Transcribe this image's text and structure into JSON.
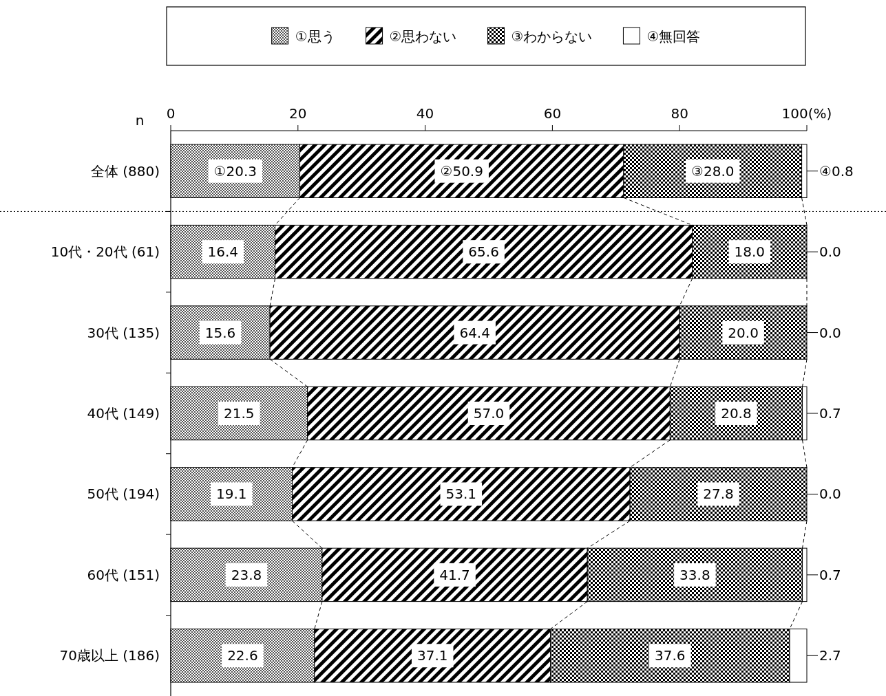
{
  "chart_data": {
    "type": "bar",
    "orientation": "horizontal",
    "stacked": true,
    "legend": "top",
    "grid": false,
    "categories": [
      "全体 (880)",
      "10代・20代 (61)",
      "30代 (135)",
      "40代 (149)",
      "50代 (194)",
      "60代 (151)",
      "70歳以上 (186)"
    ],
    "series": [
      {
        "name": "①思う",
        "color": "#000000",
        "values": [
          20.3,
          16.4,
          15.6,
          21.5,
          19.1,
          23.8,
          22.6
        ],
        "value_labels": [
          "①20.3",
          "16.4",
          "15.6",
          "21.5",
          "19.1",
          "23.8",
          "22.6"
        ]
      },
      {
        "name": "②思わない",
        "color": "#000000",
        "values": [
          50.9,
          65.6,
          64.4,
          57.0,
          53.1,
          41.7,
          37.1
        ],
        "value_labels": [
          "②50.9",
          "65.6",
          "64.4",
          "57.0",
          "53.1",
          "41.7",
          "37.1"
        ]
      },
      {
        "name": "③わからない",
        "color": "#000000",
        "values": [
          28.0,
          18.0,
          20.0,
          20.8,
          27.8,
          33.8,
          37.6
        ],
        "value_labels": [
          "③28.0",
          "18.0",
          "20.0",
          "20.8",
          "27.8",
          "33.8",
          "37.6"
        ]
      },
      {
        "name": "④無回答",
        "color": "#ffffff",
        "values": [
          0.8,
          0.0,
          0.0,
          0.7,
          0.0,
          0.7,
          2.7
        ],
        "value_labels": [
          "④0.8",
          "0.0",
          "0.0",
          "0.7",
          "0.0",
          "0.7",
          "2.7"
        ]
      }
    ],
    "xlim": [
      0,
      100
    ],
    "xticks": [
      0,
      20,
      40,
      60,
      80,
      {
        "value": 100,
        "label": "100(%)"
      }
    ],
    "annotations": [
      "n"
    ]
  }
}
